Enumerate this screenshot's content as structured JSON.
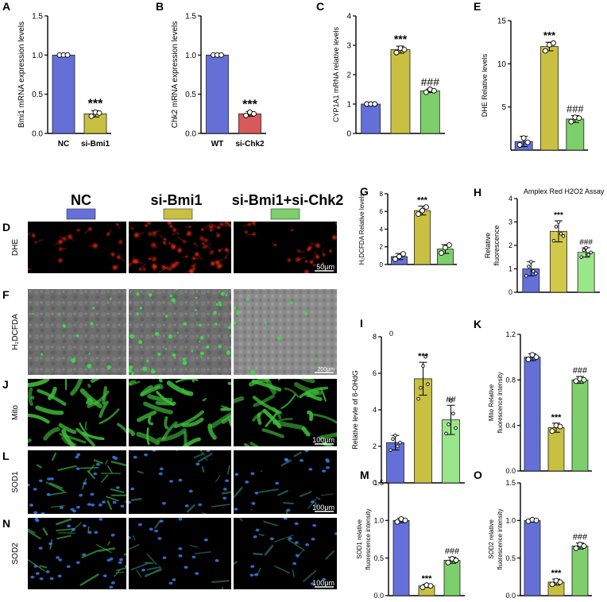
{
  "colors": {
    "blue": "#6470d8",
    "yellow": "#c9c042",
    "green": "#7ccf6a",
    "red": "#d65a5a",
    "yellow_light": "#d2c94a",
    "green_light": "#9ae68a"
  },
  "panels_text": {
    "micro_header": {
      "nc": "NC",
      "si_bmi1": "si-Bmi1",
      "combo": "si-Bmi1+si-Chk2"
    },
    "row_labels": {
      "D": {
        "letter": "D",
        "stain": "DHE",
        "scale": "50μm"
      },
      "F": {
        "letter": "F",
        "stain": "H₂DCFDA",
        "scale": "200μm"
      },
      "J": {
        "letter": "J",
        "stain": "Mito",
        "scale": "100μm"
      },
      "L": {
        "letter": "L",
        "stain": "SOD1",
        "scale": "100μm"
      },
      "N": {
        "letter": "N",
        "stain": "SOD2",
        "scale": "100μm"
      }
    },
    "stray_zero": "0"
  },
  "chart_data": [
    {
      "id": "A",
      "letter": "A",
      "type": "bar",
      "categories": [
        "NC",
        "si-Bmi1"
      ],
      "values": [
        1.0,
        0.25
      ],
      "errors": [
        0.01,
        0.04
      ],
      "points": [
        [
          1.0,
          1.0,
          1.0
        ],
        [
          0.22,
          0.27,
          0.26
        ]
      ],
      "ylabel": "Bmi1 mRNA expression levels",
      "yticks": [
        "0.0",
        "0.5",
        "1.0",
        "1.5"
      ],
      "ylim": [
        0,
        1.5
      ],
      "annotations": [
        "",
        "***"
      ],
      "bar_colors": [
        "blue",
        "yellow"
      ]
    },
    {
      "id": "B",
      "letter": "B",
      "type": "bar",
      "categories": [
        "WT",
        "si-Chk2"
      ],
      "values": [
        1.0,
        0.25
      ],
      "errors": [
        0.01,
        0.03
      ],
      "points": [
        [
          1.0,
          1.0,
          1.0
        ],
        [
          0.23,
          0.27,
          0.25
        ]
      ],
      "ylabel": "Chk2 mRNA expression levels",
      "yticks": [
        "0.0",
        "0.5",
        "1.0",
        "1.5"
      ],
      "ylim": [
        0,
        1.5
      ],
      "annotations": [
        "",
        "***"
      ],
      "bar_colors": [
        "blue",
        "red"
      ]
    },
    {
      "id": "C",
      "letter": "C",
      "type": "bar",
      "categories": [
        "",
        "",
        ""
      ],
      "values": [
        1.0,
        2.85,
        1.45
      ],
      "errors": [
        0.02,
        0.12,
        0.06
      ],
      "points": [
        [
          1.0,
          1.0,
          1.0
        ],
        [
          2.75,
          2.9,
          2.85
        ],
        [
          1.4,
          1.5,
          1.45
        ]
      ],
      "ylabel": "CYP1A1 mRNA relative levels",
      "yticks": [
        "0",
        "1",
        "2",
        "3",
        "4"
      ],
      "ylim": [
        0,
        4
      ],
      "annotations": [
        "",
        "***",
        "###"
      ],
      "bar_colors": [
        "blue",
        "yellow",
        "green"
      ]
    },
    {
      "id": "E",
      "letter": "E",
      "type": "bar",
      "categories": [
        "",
        "",
        ""
      ],
      "values": [
        1.0,
        12.0,
        3.6
      ],
      "errors": [
        0.6,
        0.5,
        0.4
      ],
      "points": [
        [
          0.6,
          1.4,
          0.9
        ],
        [
          11.5,
          12.2,
          12.4
        ],
        [
          3.3,
          3.8,
          3.7
        ]
      ],
      "ylabel": "DHE Relative levels",
      "yticks": [
        "5",
        "10",
        "15"
      ],
      "ylim": [
        0,
        15
      ],
      "annotations": [
        "",
        "***",
        "###"
      ],
      "bar_colors": [
        "blue",
        "yellow",
        "green"
      ]
    },
    {
      "id": "G",
      "letter": "G",
      "type": "bar",
      "categories": [
        "",
        "",
        ""
      ],
      "values": [
        0.9,
        6.1,
        1.75
      ],
      "errors": [
        0.35,
        0.5,
        0.5
      ],
      "points": [
        [
          0.6,
          0.9,
          1.2
        ],
        [
          5.7,
          6.1,
          6.5
        ],
        [
          1.3,
          1.9,
          2.2
        ]
      ],
      "ylabel": "H₂DCFDA  Relative levels",
      "yticks": [
        "0",
        "2",
        "4",
        "6",
        "8"
      ],
      "ylim": [
        0,
        8
      ],
      "annotations": [
        "",
        "***",
        ""
      ],
      "bar_colors": [
        "blue",
        "yellow",
        "green"
      ]
    },
    {
      "id": "H",
      "letter": "H",
      "type": "bar",
      "categories": [
        "",
        "",
        ""
      ],
      "values": [
        1.0,
        2.6,
        1.7
      ],
      "errors": [
        0.3,
        0.45,
        0.2
      ],
      "points": [
        [
          0.7,
          1.1,
          1.3,
          0.9,
          0.8
        ],
        [
          2.2,
          2.8,
          3.0,
          2.5,
          2.4
        ],
        [
          1.5,
          1.8,
          1.9,
          1.6,
          1.7
        ]
      ],
      "title": "Amplex Red H2O2 Assay",
      "ylabel": "Relative fluorescence",
      "yticks": [
        "0",
        "1",
        "2",
        "3",
        "4"
      ],
      "ylim": [
        0,
        4
      ],
      "annotations": [
        "",
        "***",
        "###"
      ],
      "bar_colors": [
        "blue",
        "yellow_light",
        "green_light"
      ]
    },
    {
      "id": "I",
      "letter": "I",
      "type": "bar",
      "categories": [
        "",
        "",
        ""
      ],
      "values": [
        2.2,
        5.7,
        3.45
      ],
      "errors": [
        0.4,
        0.9,
        0.8
      ],
      "points": [
        [
          1.8,
          2.4,
          2.6,
          2.0,
          2.2
        ],
        [
          4.6,
          5.2,
          6.4,
          6.9,
          5.4
        ],
        [
          2.7,
          3.2,
          4.5,
          3.8,
          3.0
        ]
      ],
      "ylabel": "Relative levle of 8-OHdG",
      "yticks": [
        "0",
        "2",
        "4",
        "6",
        "8"
      ],
      "ylim": [
        0,
        8
      ],
      "annotations": [
        "",
        "***",
        "##"
      ],
      "bar_colors": [
        "blue",
        "yellow",
        "green_light"
      ]
    },
    {
      "id": "K",
      "letter": "K",
      "type": "bar",
      "categories": [
        "",
        "",
        ""
      ],
      "values": [
        1.0,
        0.38,
        0.8
      ],
      "errors": [
        0.03,
        0.04,
        0.03
      ],
      "points": [
        [
          0.98,
          1.02,
          1.0
        ],
        [
          0.35,
          0.4,
          0.39
        ],
        [
          0.79,
          0.81,
          0.8
        ]
      ],
      "ylabel": "Mito Relative fluorescence intensity",
      "yticks": [
        "0.0",
        "0.4",
        "0.8",
        "1.2"
      ],
      "ylim": [
        0,
        1.2
      ],
      "annotations": [
        "",
        "***",
        "###"
      ],
      "bar_colors": [
        "blue",
        "yellow",
        "green"
      ]
    },
    {
      "id": "M",
      "letter": "M",
      "type": "bar",
      "categories": [
        "",
        "",
        ""
      ],
      "values": [
        1.0,
        0.13,
        0.47
      ],
      "errors": [
        0.03,
        0.02,
        0.04
      ],
      "points": [
        [
          0.98,
          1.02,
          1.0
        ],
        [
          0.11,
          0.14,
          0.13
        ],
        [
          0.44,
          0.49,
          0.47
        ]
      ],
      "ylabel": "SOD1 relative fluorescence intensity",
      "yticks": [
        "0.0",
        "0.5",
        "1.0",
        "1.5"
      ],
      "ylim": [
        0,
        1.5
      ],
      "annotations": [
        "",
        "***",
        "###"
      ],
      "bar_colors": [
        "blue",
        "yellow",
        "green"
      ]
    },
    {
      "id": "O",
      "letter": "O",
      "type": "bar",
      "categories": [
        "",
        "",
        ""
      ],
      "values": [
        1.0,
        0.18,
        0.66
      ],
      "errors": [
        0.02,
        0.04,
        0.04
      ],
      "points": [
        [
          0.99,
          1.01,
          1.0
        ],
        [
          0.15,
          0.2,
          0.18
        ],
        [
          0.63,
          0.68,
          0.66
        ]
      ],
      "ylabel": "SOD2 relative fluorescence intensity",
      "yticks": [
        "0.0",
        "0.5",
        "1.0",
        "1.5"
      ],
      "ylim": [
        0,
        1.5
      ],
      "annotations": [
        "",
        "***",
        "###"
      ],
      "bar_colors": [
        "blue",
        "yellow",
        "green"
      ]
    }
  ]
}
